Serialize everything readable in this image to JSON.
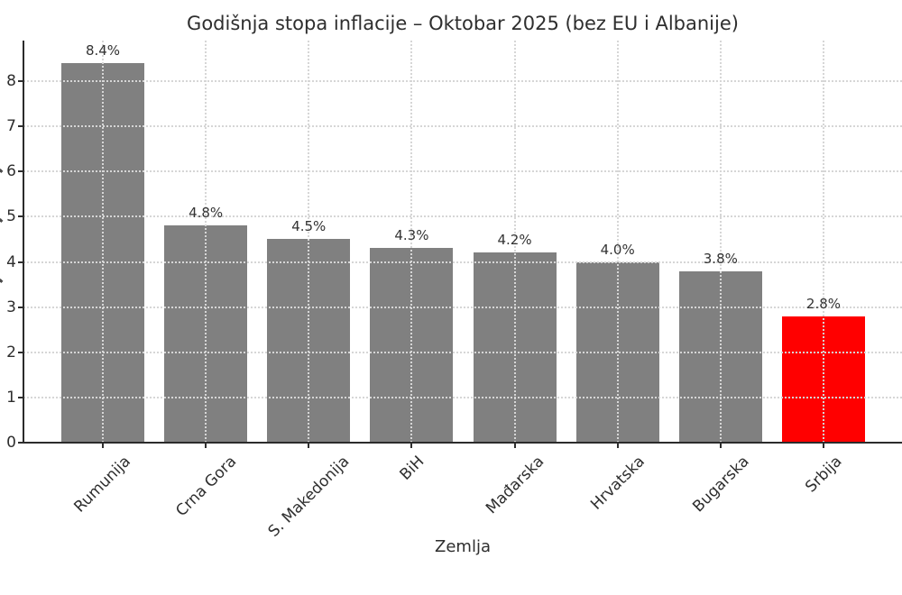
{
  "chart_data": {
    "type": "bar",
    "title": "Godišnja stopa inflacije – Oktobar 2025 (bez EU i Albanije)",
    "xlabel": "Zemlja",
    "categories": [
      "Rumunija",
      "Crna Gora",
      "S. Makedonija",
      "BiH",
      "Mađarska",
      "Hrvatska",
      "Bugarska",
      "Srbija"
    ],
    "values": [
      8.4,
      4.8,
      4.5,
      4.3,
      4.2,
      4.0,
      3.8,
      2.8
    ],
    "value_labels": [
      "8.4%",
      "4.8%",
      "4.5%",
      "4.3%",
      "4.2%",
      "4.0%",
      "3.8%",
      "2.8%"
    ],
    "bar_colors": [
      "#808080",
      "#808080",
      "#808080",
      "#808080",
      "#808080",
      "#808080",
      "#808080",
      "#ff0000"
    ],
    "highlight_category": "Srbija",
    "y_ticks": [
      0,
      1,
      2,
      3,
      4,
      5,
      6,
      7,
      8
    ],
    "ylim": [
      0,
      8.9
    ],
    "grid": true,
    "grid_style": "dotted",
    "legend": "none",
    "colors": {
      "bar_default": "#808080",
      "bar_highlight": "#ff0000",
      "grid": "#d6d6d6",
      "axis": "#2b2b2b",
      "text": "#2e2e2e",
      "background": "#ffffff"
    }
  }
}
